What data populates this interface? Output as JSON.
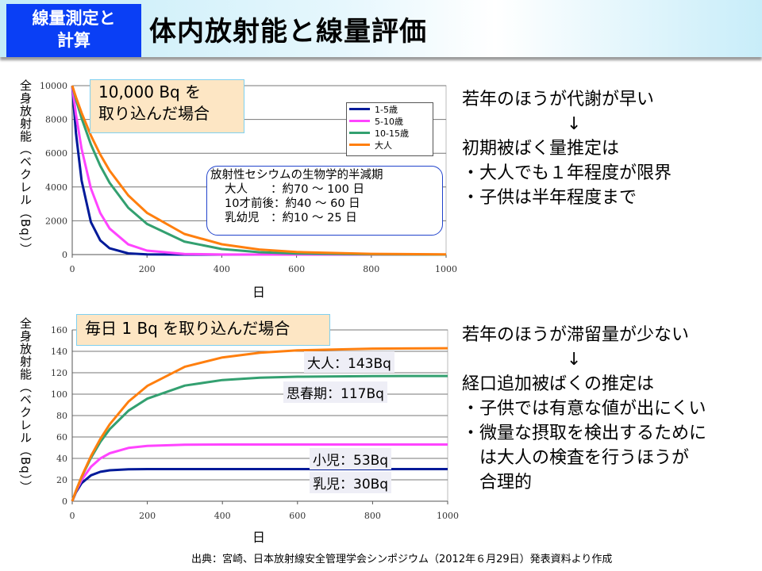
{
  "header": {
    "badge": "線量測定と計算",
    "badge_line1": "線量測定と",
    "badge_line2": "計算",
    "title": "体内放射能と線量評価"
  },
  "colors": {
    "1-5": "#001a99",
    "5-10": "#ff44ff",
    "10-15": "#33a070",
    "adult": "#ff7f0e",
    "badge": "#0a3ff5"
  },
  "chart_data": [
    {
      "type": "line",
      "callout": "10,000 Bq を取り込んだ場合",
      "callout_line1": "10,000 Bq を",
      "callout_line2": "取り込んだ場合",
      "xlabel": "日",
      "ylabel": "全身放射能（ベクレル（Bq））",
      "xlim": [
        0,
        1000
      ],
      "ylim": [
        0,
        10000
      ],
      "xticks": [
        "0",
        "200",
        "400",
        "600",
        "800",
        "1000"
      ],
      "yticks": [
        "0",
        "2000",
        "4000",
        "6000",
        "8000",
        "10000"
      ],
      "grid": true,
      "legend_position": "top-right",
      "x": [
        0,
        10,
        25,
        50,
        75,
        100,
        150,
        200,
        300,
        400,
        500,
        600,
        800,
        1000
      ],
      "series": [
        {
          "name": "1-5歳",
          "color": "#001a99",
          "values": [
            10000,
            7190,
            4380,
            1920,
            840,
            370,
            70,
            14,
            0,
            0,
            0,
            0,
            0,
            0
          ]
        },
        {
          "name": "5-10歳",
          "color": "#ff44ff",
          "values": [
            10000,
            8290,
            6260,
            3920,
            2460,
            1540,
            600,
            236,
            36,
            6,
            1,
            0,
            0,
            0
          ]
        },
        {
          "name": "10-15歳",
          "color": "#33a070",
          "values": [
            10000,
            9180,
            8070,
            6520,
            5260,
            4250,
            2770,
            1810,
            770,
            330,
            140,
            60,
            10,
            0
          ]
        },
        {
          "name": "大人",
          "color": "#ff7f0e",
          "values": [
            10000,
            9320,
            8390,
            7050,
            5920,
            4970,
            3500,
            2470,
            1220,
            610,
            300,
            150,
            40,
            10
          ]
        }
      ],
      "annotation": {
        "title": "放射性セシウムの生物学的半減期",
        "rows": [
          "大人　　：約70 ～ 100 日",
          "10才前後：約40 ～ 60 日",
          "乳幼児　：約10 ～ 25 日"
        ]
      }
    },
    {
      "type": "line",
      "callout": "毎日  1 Bq を取り込んだ場合",
      "xlabel": "日",
      "ylabel": "全身放射能（ベクレル（Bq））",
      "xlim": [
        0,
        1000
      ],
      "ylim": [
        0,
        160
      ],
      "xticks": [
        "0",
        "200",
        "400",
        "600",
        "800",
        "1000"
      ],
      "yticks": [
        "0",
        "20",
        "40",
        "60",
        "80",
        "100",
        "120",
        "140",
        "160"
      ],
      "grid": true,
      "x": [
        0,
        10,
        25,
        50,
        75,
        100,
        150,
        200,
        300,
        400,
        500,
        600,
        800,
        1000
      ],
      "series": [
        {
          "color": "#001a99",
          "values": [
            0,
            8.4,
            16.9,
            24.2,
            27.5,
            28.9,
            29.8,
            30,
            30,
            30,
            30,
            30,
            30,
            30
          ]
        },
        {
          "color": "#ff44ff",
          "values": [
            0,
            9.1,
            19.8,
            32.2,
            40.0,
            44.8,
            49.8,
            51.7,
            52.8,
            53,
            53,
            53,
            53,
            53
          ]
        },
        {
          "color": "#33a070",
          "values": [
            0,
            9.6,
            22.6,
            40.7,
            55.5,
            67.3,
            84.6,
            95.8,
            108.0,
            113.2,
            115.4,
            116.3,
            116.9,
            117
          ]
        },
        {
          "color": "#ff7f0e",
          "values": [
            0,
            9.7,
            23.0,
            42.2,
            58.3,
            71.9,
            93.0,
            107.7,
            125.6,
            134.3,
            138.7,
            140.9,
            142.5,
            142.9
          ]
        }
      ],
      "labels": [
        "大人：143Bq",
        "思春期：117Bq",
        "小児：53Bq",
        "乳児：30Bq"
      ]
    }
  ],
  "right_top": [
    "若年のほうが代謝が早い",
    "　　　　　　↓",
    "初期被ばく量推定は",
    "・大人でも１年程度が限界",
    "・子供は半年程度まで"
  ],
  "right_bottom": [
    "若年のほうが滞留量が少ない",
    "　　　　　　↓",
    "経口追加被ばくの推定は",
    "・子供では有意な値が出にくい",
    "・微量な摂取を検出するために",
    "　は大人の検査を行うほうが",
    "　合理的"
  ],
  "footer": "出典：宮崎、日本放射線安全管理学会シンポジウム（2012年６月29日）発表資料より作成"
}
